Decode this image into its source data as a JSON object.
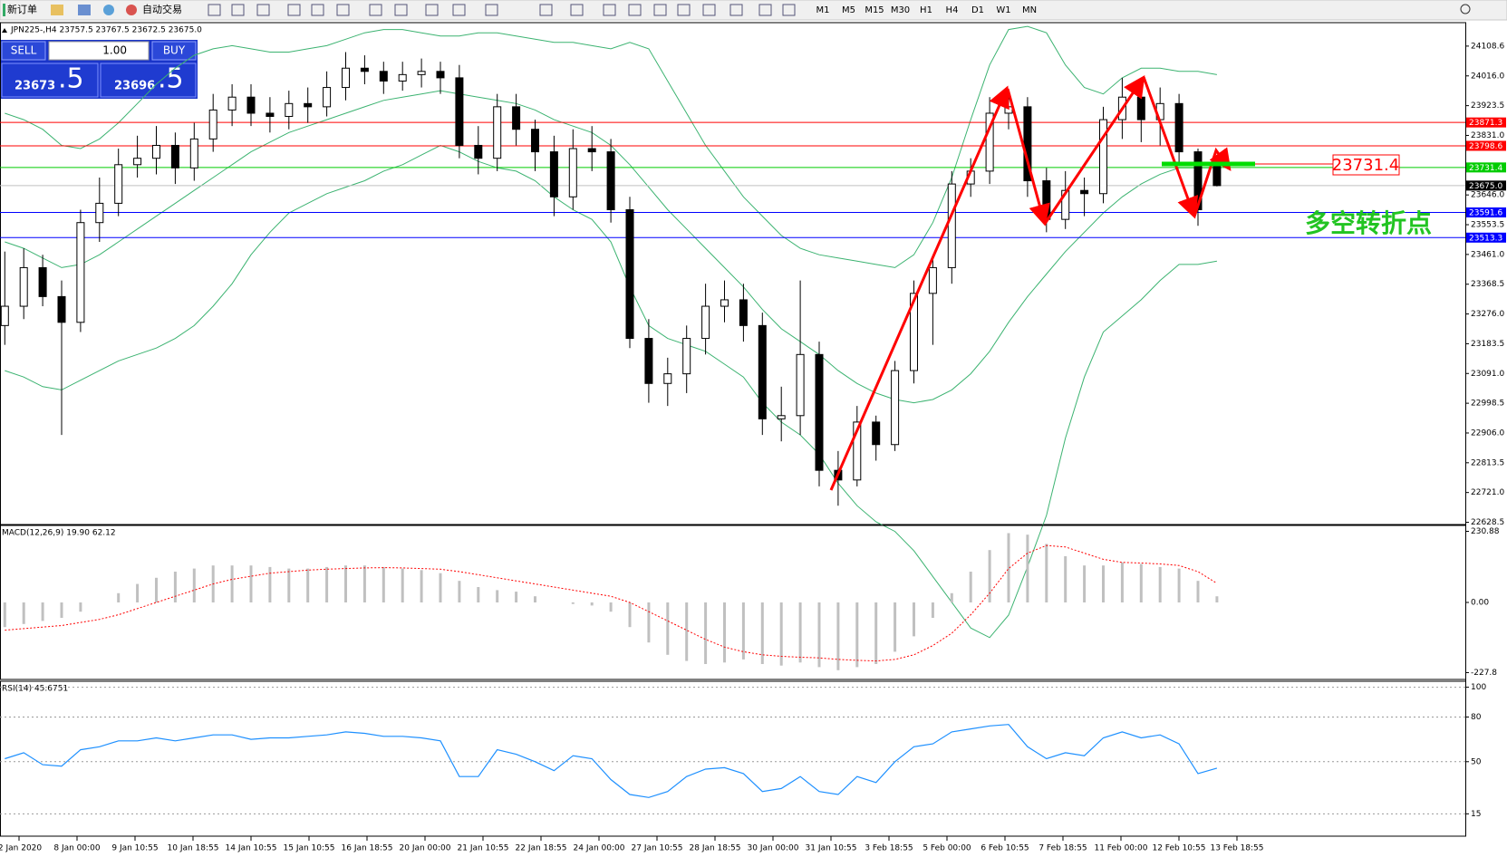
{
  "toolbar": {
    "new_order": "新订单",
    "auto_trading": "自动交易",
    "timeframes": [
      "M1",
      "M5",
      "M15",
      "M30",
      "H1",
      "H4",
      "D1",
      "W1",
      "MN"
    ]
  },
  "trade_panel": {
    "sell": "SELL",
    "buy": "BUY",
    "volume": "1.00",
    "sell_main": "23673",
    "sell_pips": ".5",
    "buy_main": "23696",
    "buy_pips": ".5"
  },
  "annotations": {
    "price_box": "23731.4",
    "note": "多空转折点"
  },
  "chart_data": [
    {
      "type": "candlestick",
      "title": "JPN225-,H4 23757.5 23767.5 23672.5 23675.0",
      "open": [
        23240,
        23300,
        23420,
        23330,
        23250,
        23560,
        23620,
        23740,
        23760,
        23800,
        23730,
        23820,
        23910,
        23950,
        23900,
        23890,
        23930,
        23920,
        23980,
        24040,
        24030,
        24000,
        24020,
        24030,
        24010,
        23800,
        23760,
        23920,
        23850,
        23780,
        23640,
        23790,
        23780,
        23600,
        23200,
        23060,
        23090,
        23200,
        23300,
        23320,
        23240,
        22950,
        22960,
        23150,
        22790,
        22760,
        22940,
        22870,
        23100,
        23340,
        23420,
        23680,
        23720,
        23900,
        23920,
        23690,
        23570,
        23660,
        23650,
        23880,
        23950,
        23880,
        23930,
        23780,
        23757.5
      ],
      "high": [
        23470,
        23480,
        23460,
        23380,
        23600,
        23700,
        23790,
        23830,
        23860,
        23840,
        23870,
        23960,
        23990,
        23990,
        23950,
        23970,
        23980,
        24030,
        24090,
        24080,
        24060,
        24060,
        24070,
        24060,
        24050,
        23860,
        23960,
        23960,
        23880,
        23830,
        23850,
        23860,
        23820,
        23640,
        23260,
        23140,
        23240,
        23370,
        23380,
        23370,
        23280,
        23050,
        23380,
        23190,
        22850,
        22990,
        22960,
        23130,
        23380,
        23450,
        23720,
        23760,
        23950,
        23960,
        23950,
        23730,
        23720,
        23700,
        23920,
        24010,
        24010,
        23980,
        23960,
        23790,
        23767.5
      ],
      "low": [
        23180,
        23260,
        23300,
        22900,
        23220,
        23500,
        23580,
        23700,
        23710,
        23680,
        23690,
        23780,
        23860,
        23860,
        23840,
        23850,
        23870,
        23890,
        23940,
        23990,
        23960,
        23970,
        23980,
        23960,
        23760,
        23710,
        23720,
        23800,
        23720,
        23580,
        23600,
        23720,
        23560,
        23170,
        23000,
        22990,
        23030,
        23150,
        23250,
        23190,
        22900,
        22880,
        22900,
        22740,
        22680,
        22740,
        22820,
        22850,
        23060,
        23180,
        23370,
        23640,
        23680,
        23850,
        23640,
        23530,
        23540,
        23580,
        23620,
        23820,
        23810,
        23800,
        23740,
        23550,
        23672.5
      ],
      "close": [
        23300,
        23420,
        23330,
        23250,
        23560,
        23620,
        23740,
        23760,
        23800,
        23730,
        23820,
        23910,
        23950,
        23900,
        23890,
        23930,
        23920,
        23980,
        24040,
        24030,
        24000,
        24020,
        24030,
        24010,
        23800,
        23760,
        23920,
        23850,
        23780,
        23640,
        23790,
        23780,
        23600,
        23200,
        23060,
        23090,
        23200,
        23300,
        23320,
        23240,
        22950,
        22960,
        23150,
        22790,
        22760,
        22940,
        22870,
        23100,
        23340,
        23420,
        23680,
        23720,
        23900,
        23920,
        23690,
        23570,
        23660,
        23650,
        23880,
        23950,
        23880,
        23930,
        23780,
        23600,
        23675
      ],
      "bands": {
        "color": "#3cb371",
        "upper": [
          23900,
          23880,
          23850,
          23800,
          23790,
          23820,
          23870,
          23930,
          23990,
          24040,
          24080,
          24100,
          24110,
          24100,
          24090,
          24090,
          24100,
          24110,
          24130,
          24150,
          24160,
          24160,
          24150,
          24140,
          24140,
          24150,
          24150,
          24140,
          24130,
          24120,
          24120,
          24110,
          24100,
          24120,
          24100,
          24000,
          23900,
          23800,
          23720,
          23640,
          23580,
          23520,
          23480,
          23460,
          23450,
          23440,
          23430,
          23420,
          23460,
          23560,
          23700,
          23880,
          24050,
          24160,
          24170,
          24150,
          24050,
          23980,
          23960,
          24010,
          24040,
          24040,
          24030,
          24030,
          24020
        ],
        "middle": [
          23500,
          23480,
          23450,
          23420,
          23430,
          23460,
          23500,
          23540,
          23580,
          23620,
          23660,
          23700,
          23740,
          23780,
          23810,
          23840,
          23860,
          23880,
          23900,
          23920,
          23940,
          23950,
          23960,
          23970,
          23960,
          23950,
          23940,
          23930,
          23910,
          23880,
          23860,
          23840,
          23800,
          23740,
          23670,
          23600,
          23540,
          23480,
          23420,
          23360,
          23290,
          23230,
          23190,
          23150,
          23100,
          23060,
          23030,
          23010,
          23000,
          23010,
          23040,
          23090,
          23160,
          23250,
          23330,
          23400,
          23470,
          23530,
          23590,
          23640,
          23680,
          23710,
          23730,
          23730,
          23730
        ],
        "lower": [
          23100,
          23080,
          23050,
          23040,
          23070,
          23100,
          23130,
          23150,
          23170,
          23200,
          23240,
          23300,
          23370,
          23460,
          23530,
          23590,
          23620,
          23650,
          23670,
          23690,
          23720,
          23740,
          23770,
          23800,
          23780,
          23750,
          23730,
          23720,
          23690,
          23640,
          23600,
          23570,
          23500,
          23360,
          23240,
          23200,
          23180,
          23160,
          23120,
          23080,
          23000,
          22940,
          22900,
          22840,
          22750,
          22680,
          22630,
          22600,
          22540,
          22460,
          22380,
          22300,
          22270,
          22340,
          22490,
          22650,
          22890,
          23080,
          23220,
          23270,
          23320,
          23380,
          23430,
          23430,
          23440
        ]
      },
      "ylim": [
        22621.5,
        24181.5
      ],
      "yticks": [
        24108.6,
        {
          "value": 24016.0,
          "label": "24016.0"
        },
        23923.5,
        {
          "value": 23831.0,
          "label": "23831.0"
        },
        {
          "value": 23646.0,
          "label": "23646.0"
        },
        23553.5,
        {
          "value": 23461.0,
          "label": "23461.0"
        },
        23368.5,
        {
          "value": 23276.0,
          "label": "23276.0"
        },
        23183.5,
        {
          "value": 23091.0,
          "label": "23091.0"
        },
        22998.5,
        {
          "value": 22906.0,
          "label": "22906.0"
        },
        22813.5,
        {
          "value": 22721.0,
          "label": "22721.0"
        },
        22628.5
      ],
      "levels": [
        {
          "price": 23871.3,
          "color": "#ff0000"
        },
        {
          "price": 23798.6,
          "color": "#ff0000"
        },
        {
          "price": 23731.4,
          "color": "#00cc00"
        },
        {
          "price": 23675.0,
          "label": "23675.0",
          "color": "#000000"
        },
        {
          "price": 23591.6,
          "color": "#0000ff"
        },
        {
          "price": 23513.3,
          "color": "#0000ff"
        }
      ],
      "x_labels": [
        "2 Jan 2020",
        "8 Jan 00:00",
        "9 Jan 10:55",
        "10 Jan 18:55",
        "14 Jan 10:55",
        "15 Jan 10:55",
        "16 Jan 18:55",
        "20 Jan 00:00",
        "21 Jan 10:55",
        "22 Jan 18:55",
        "24 Jan 00:00",
        "27 Jan 10:55",
        "28 Jan 18:55",
        "30 Jan 00:00",
        "31 Jan 10:55",
        "3 Feb 18:55",
        "5 Feb 00:00",
        "6 Feb 10:55",
        "7 Feb 18:55",
        "11 Feb 00:00",
        "12 Feb 10:55",
        "13 Feb 18:55"
      ]
    },
    {
      "type": "macd",
      "title": "MACD(12,26,9) 19.90 62.12",
      "histogram": [
        -80,
        -70,
        -60,
        -50,
        -30,
        0,
        30,
        60,
        80,
        100,
        110,
        120,
        120,
        120,
        115,
        110,
        110,
        115,
        120,
        120,
        115,
        110,
        105,
        95,
        70,
        50,
        40,
        35,
        20,
        0,
        -5,
        -10,
        -30,
        -80,
        -130,
        -170,
        -190,
        -200,
        -195,
        -185,
        -200,
        -205,
        -195,
        -210,
        -220,
        -210,
        -200,
        -160,
        -110,
        -50,
        30,
        100,
        170,
        225,
        220,
        190,
        150,
        120,
        120,
        130,
        125,
        115,
        110,
        70,
        19.9
      ],
      "signal": [
        -90,
        -85,
        -80,
        -75,
        -65,
        -55,
        -40,
        -20,
        0,
        20,
        40,
        60,
        75,
        85,
        95,
        100,
        105,
        108,
        110,
        112,
        113,
        112,
        110,
        108,
        100,
        90,
        80,
        70,
        60,
        50,
        40,
        30,
        20,
        0,
        -30,
        -60,
        -90,
        -120,
        -145,
        -160,
        -170,
        -175,
        -178,
        -180,
        -185,
        -188,
        -190,
        -185,
        -170,
        -140,
        -100,
        -40,
        30,
        110,
        160,
        185,
        180,
        160,
        140,
        130,
        128,
        125,
        120,
        100,
        62.12
      ],
      "histogram_color": "#c0c0c0",
      "signal_color": "#ff0000",
      "ylim": [
        -250,
        250
      ],
      "yticks": [
        230.88,
        {
          "value": 0,
          "label": "0.00"
        },
        -227.8
      ]
    },
    {
      "type": "line",
      "title": "RSI(14) 45.6751",
      "values": [
        52,
        56,
        48,
        47,
        58,
        60,
        64,
        64,
        66,
        64,
        66,
        68,
        68,
        65,
        66,
        66,
        67,
        68,
        70,
        69,
        67,
        67,
        66,
        64,
        40,
        40,
        58,
        55,
        50,
        44,
        54,
        52,
        38,
        28,
        26,
        30,
        40,
        45,
        46,
        42,
        30,
        32,
        40,
        30,
        28,
        40,
        36,
        50,
        60,
        62,
        70,
        72,
        74,
        75,
        60,
        52,
        56,
        54,
        66,
        70,
        66,
        68,
        62,
        42,
        45.6751
      ],
      "color": "#1e90ff",
      "ylim": [
        0,
        104
      ],
      "yticks": [
        100,
        80,
        50,
        15
      ],
      "grid": true
    }
  ]
}
